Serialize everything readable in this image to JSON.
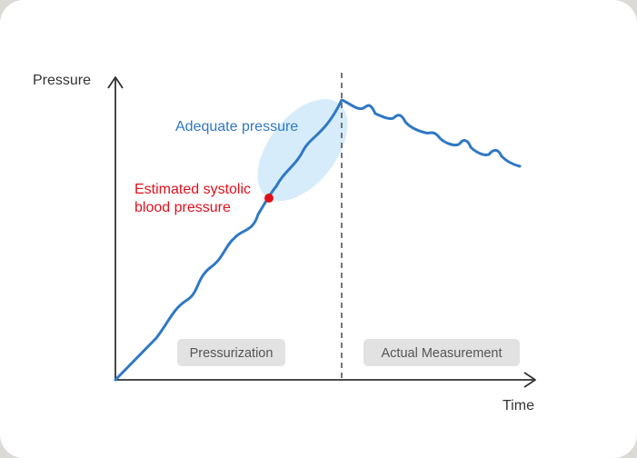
{
  "diagram": {
    "axis_y_label": "Pressure",
    "axis_x_label": "Time",
    "annotation_adequate": "Adequate pressure",
    "annotation_systolic_line1": "Estimated systolic",
    "annotation_systolic_line2": "blood pressure",
    "phase_1": "Pressurization",
    "phase_2": "Actual Measurement"
  },
  "colors": {
    "curve": "#2f78c4",
    "annotation_blue": "#2f78c4",
    "annotation_red": "#e0101b",
    "highlight": "#d6ecfa",
    "axis": "#333333",
    "phase_bg": "#e2e2e2",
    "phase_text": "#555555"
  },
  "icons": {
    "axis_arrow": "arrow-icon",
    "marker": "dot-icon"
  }
}
